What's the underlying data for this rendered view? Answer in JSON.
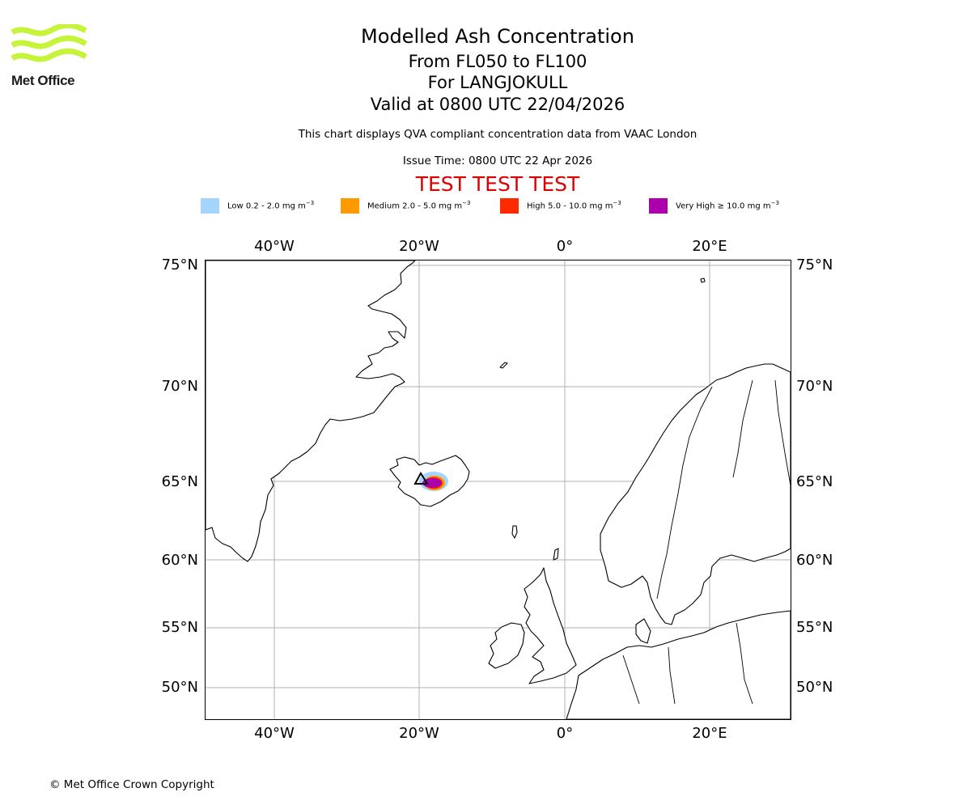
{
  "logo": {
    "text": "Met Office",
    "color": "#c6f43a",
    "icon": "met-office-waves-icon"
  },
  "header": {
    "title": "Modelled Ash Concentration",
    "level_range": "From FL050 to FL100",
    "volcano": "For LANGJOKULL",
    "valid_time": "Valid at 0800 UTC 22/04/2026",
    "description": "This chart displays QVA compliant concentration data from VAAC London",
    "issue_time": "Issue Time: 0800 UTC 22 Apr 2026",
    "test_banner": "TEST TEST TEST"
  },
  "legend": [
    {
      "name": "Low",
      "label": "Low 0.2 - 2.0 mg m",
      "unit_exp": "−3",
      "color": "#a3d5ff"
    },
    {
      "name": "Medium",
      "label": "Medium 2.0 - 5.0 mg m",
      "unit_exp": "−3",
      "color": "#ff9b00"
    },
    {
      "name": "High",
      "label": "High 5.0 - 10.0 mg m",
      "unit_exp": "−3",
      "color": "#ff2a00"
    },
    {
      "name": "Very High",
      "label": "Very High  ≥  10.0 mg m",
      "unit_exp": "−3",
      "color": "#ac00ac"
    }
  ],
  "map": {
    "lon_labels": [
      "40°W",
      "20°W",
      "0°",
      "20°E"
    ],
    "lat_labels": [
      "75°N",
      "70°N",
      "65°N",
      "60°N",
      "55°N",
      "50°N"
    ],
    "ash_plume": {
      "volcano_name": "LANGJOKULL",
      "categories": [
        "Low",
        "Medium",
        "High",
        "Very High"
      ]
    }
  },
  "footer": {
    "copyright": "© Met Office Crown Copyright"
  }
}
